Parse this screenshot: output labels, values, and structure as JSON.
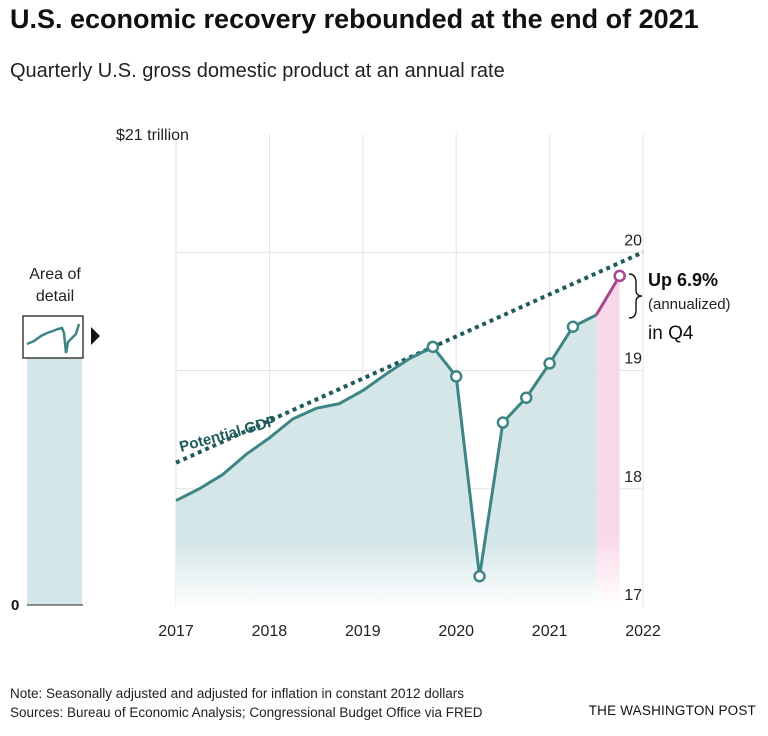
{
  "title": "U.S. economic recovery rebounded at the end of 2021",
  "subtitle": "Quarterly U.S. gross domestic product at an annual rate",
  "note": "Note: Seasonally adjusted and adjusted for inflation in constant 2012 dollars",
  "sources": "Sources: Bureau of Economic Analysis; Congressional Budget Office via FRED",
  "credit": "THE WASHINGTON POST",
  "inset": {
    "label_line1": "Area of",
    "label_line2": "detail",
    "zero_label": "0"
  },
  "annotation": {
    "headline": "Up 6.9%",
    "detail": "(annualized)",
    "period": "in Q4"
  },
  "potential_label": "Potential GDP",
  "colors": {
    "line": "#3e8585",
    "area": "#d5e6e8",
    "potential": "#1f5b5b",
    "highlight": "#a6488f",
    "highlight_area": "#f8d8e8"
  },
  "chart_data": {
    "type": "area",
    "ylim": [
      17,
      21
    ],
    "yticks": [
      17,
      18,
      19,
      20
    ],
    "ytick_labels": [
      "17",
      "18",
      "19",
      "20"
    ],
    "ytop_label": "$21 trillion",
    "xlim": [
      2017.0,
      2022.0
    ],
    "xticks": [
      2017,
      2018,
      2019,
      2020,
      2021,
      2022
    ],
    "xtick_labels": [
      "2017",
      "2018",
      "2019",
      "2020",
      "2021",
      "2022"
    ],
    "series": [
      {
        "x": [
          2017.0,
          2017.25,
          2017.5,
          2017.75,
          2018.0,
          2018.25,
          2018.5,
          2018.75,
          2019.0,
          2019.25,
          2019.5,
          2019.75,
          2020.0,
          2020.25,
          2020.5,
          2020.75,
          2021.0,
          2021.25,
          2021.5,
          2021.75
        ],
        "values": [
          17.9,
          18.0,
          18.12,
          18.29,
          18.43,
          18.59,
          18.68,
          18.72,
          18.83,
          18.97,
          19.1,
          19.2,
          18.95,
          17.26,
          18.56,
          18.77,
          19.06,
          19.37,
          19.47,
          19.8
        ],
        "marked": [
          false,
          false,
          false,
          false,
          false,
          false,
          false,
          false,
          false,
          false,
          false,
          true,
          true,
          true,
          true,
          true,
          true,
          true,
          false,
          true
        ],
        "highlight_last_segment": true
      },
      {
        "name": "Potential GDP",
        "x": [
          2017.0,
          2022.0
        ],
        "values": [
          18.22,
          20.0
        ],
        "style": "dotted"
      }
    ]
  }
}
